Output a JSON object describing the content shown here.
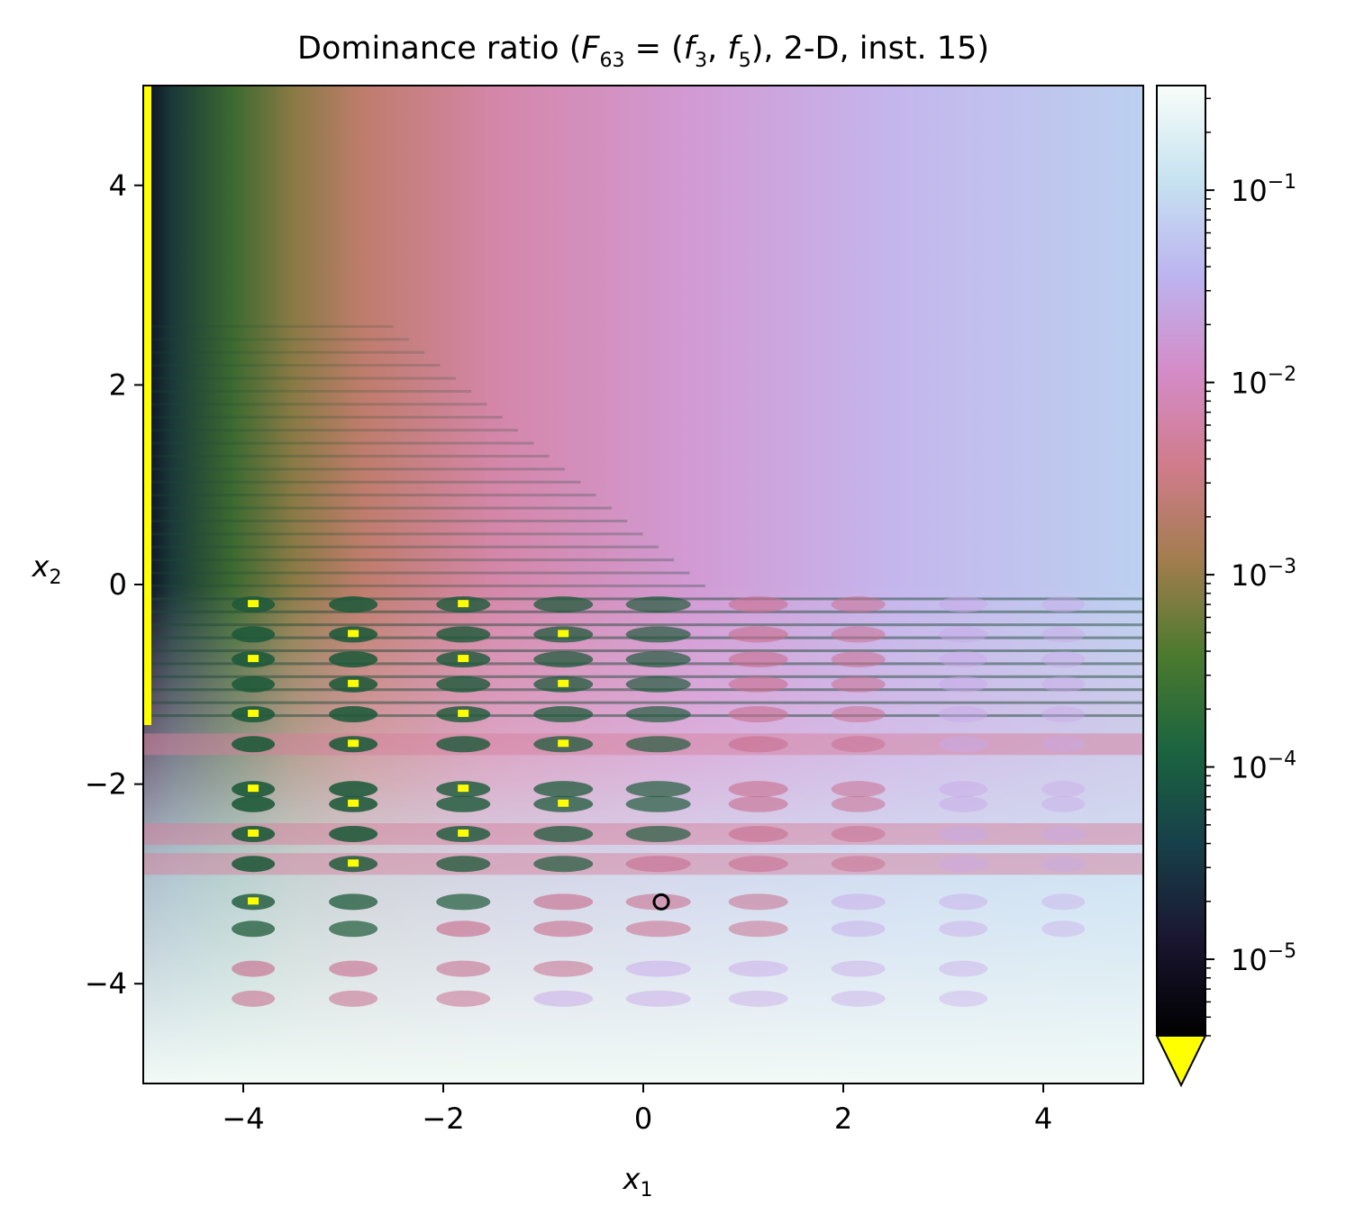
{
  "chart_data": {
    "type": "heatmap",
    "title_parts": {
      "prefix": "Dominance ratio (",
      "F": "F",
      "F_sub": "63",
      "eq": " = (",
      "f": "f",
      "f1_sub": "3",
      "comma": ", ",
      "f2_sub": "5",
      "suffix": "), 2-D, inst. 15)"
    },
    "xlabel": {
      "var": "x",
      "sub": "1"
    },
    "ylabel": {
      "var": "x",
      "sub": "2"
    },
    "xlim": [
      -5,
      5
    ],
    "ylim": [
      -5,
      5
    ],
    "xticks": [
      -4,
      -2,
      0,
      2,
      4
    ],
    "yticks": [
      -4,
      -2,
      0,
      2,
      4
    ],
    "tick_labels": {
      "x": [
        "−4",
        "−2",
        "0",
        "2",
        "4"
      ],
      "y": [
        "−4",
        "−2",
        "0",
        "2",
        "4"
      ]
    },
    "colorbar": {
      "scale": "log",
      "range": [
        4e-06,
        0.35
      ],
      "ticks": [
        1e-05,
        0.0001,
        0.001,
        0.01,
        0.1
      ],
      "tick_labels": [
        {
          "base": "10",
          "exp": "−5"
        },
        {
          "base": "10",
          "exp": "−4"
        },
        {
          "base": "10",
          "exp": "−3"
        },
        {
          "base": "10",
          "exp": "−2"
        },
        {
          "base": "10",
          "exp": "−1"
        }
      ],
      "colormap": "cubehelix",
      "under_color": "#ffff00",
      "extend": "min"
    },
    "marker": {
      "x": 0.18,
      "y": -3.18,
      "style": "open-circle"
    },
    "grid_points": {
      "x": [
        -3.9,
        -2.9,
        -1.8,
        -0.8,
        0.15,
        1.15,
        2.15,
        3.2,
        4.2
      ],
      "y": [
        -0.2,
        -0.5,
        -0.75,
        -1.0,
        -1.3,
        -1.6,
        -2.05,
        -2.2,
        -2.5,
        -2.8,
        -3.18,
        -3.45,
        -3.85,
        -4.15
      ]
    }
  }
}
